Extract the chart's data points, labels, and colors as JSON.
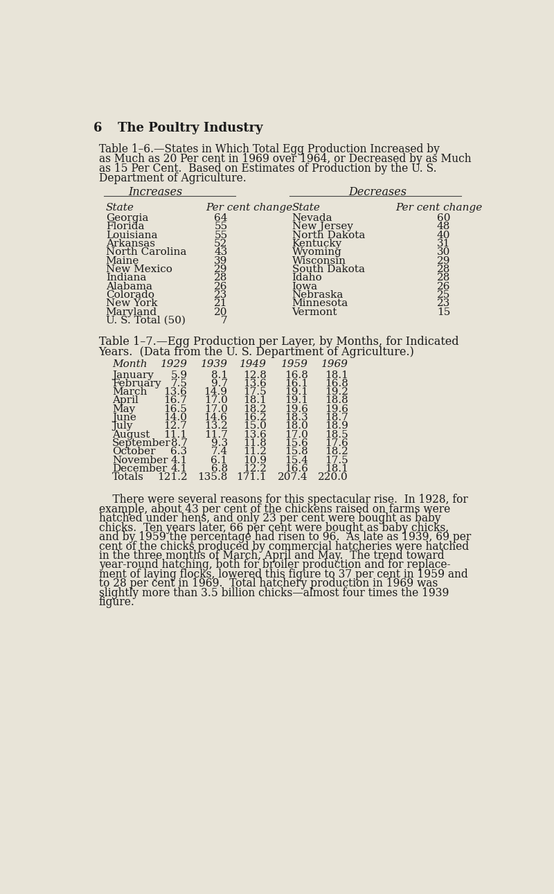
{
  "background_color": "#e8e4d8",
  "increases_header": "Increases",
  "decreases_header": "Decreases",
  "increases_data": [
    [
      "Georgia",
      "64"
    ],
    [
      "Florida",
      "55"
    ],
    [
      "Louisiana",
      "55"
    ],
    [
      "Arkansas",
      "52"
    ],
    [
      "North Carolina",
      "43"
    ],
    [
      "Maine",
      "39"
    ],
    [
      "New Mexico",
      "29"
    ],
    [
      "Indiana",
      "28"
    ],
    [
      "Alabama",
      "26"
    ],
    [
      "Colorado",
      "23"
    ],
    [
      "New York",
      "21"
    ],
    [
      "Maryland",
      "20"
    ],
    [
      "U. S. Total (50)",
      "7"
    ]
  ],
  "decreases_data": [
    [
      "Nevada",
      "60"
    ],
    [
      "New Jersey",
      "48"
    ],
    [
      "North Dakota",
      "40"
    ],
    [
      "Kentucky",
      "31"
    ],
    [
      "Wyoming",
      "30"
    ],
    [
      "Wisconsin",
      "29"
    ],
    [
      "South Dakota",
      "28"
    ],
    [
      "Idaho",
      "28"
    ],
    [
      "Iowa",
      "26"
    ],
    [
      "Nebraska",
      "25"
    ],
    [
      "Minnesota",
      "23"
    ],
    [
      "Vermont",
      "15"
    ]
  ],
  "table2_col_headers": [
    "Month",
    "1929",
    "1939",
    "1949",
    "1959",
    "1969"
  ],
  "table2_data": [
    [
      "January",
      "5.9",
      "8.1",
      "12.8",
      "16.8",
      "18.1"
    ],
    [
      "February",
      "7.5",
      "9.7",
      "13.6",
      "16.1",
      "16.8"
    ],
    [
      "March",
      "13.6",
      "14.9",
      "17.5",
      "19.1",
      "19.2"
    ],
    [
      "April",
      "16.7",
      "17.0",
      "18.1",
      "19.1",
      "18.8"
    ],
    [
      "May",
      "16.5",
      "17.0",
      "18.2",
      "19.6",
      "19.6"
    ],
    [
      "June",
      "14.0",
      "14.6",
      "16.2",
      "18.3",
      "18.7"
    ],
    [
      "July",
      "12.7",
      "13.2",
      "15.0",
      "18.0",
      "18.9"
    ],
    [
      "August",
      "11.1",
      "11.7",
      "13.6",
      "17.0",
      "18.5"
    ],
    [
      "September",
      "8.7",
      "9.3",
      "11.8",
      "15.6",
      "17.6"
    ],
    [
      "October",
      "6.3",
      "7.4",
      "11.2",
      "15.8",
      "18.2"
    ],
    [
      "November",
      "4.1",
      "6.1",
      "10.9",
      "15.4",
      "17.5"
    ],
    [
      "December",
      "4.1",
      "6.8",
      "12.2",
      "16.6",
      "18.1"
    ],
    [
      "Totals",
      "121.2",
      "135.8",
      "171.1",
      "207.4",
      "220.0"
    ]
  ],
  "header_num": "6",
  "header_title": "The Poultry Industry",
  "title1_lines": [
    "Table 1–6.—States in Which Total Egg Production Increased by",
    "as Much as 20 Per cent in 1969 over 1964, or Decreased by as Much",
    "as 15 Per Cent.  Based on Estimates of Production by the U. S.",
    "Department of Agriculture."
  ],
  "title2_lines": [
    "Table 1–7.—Egg Production per Layer, by Months, for Indicated",
    "Years.  (Data from the U. S. Department of Agriculture.)"
  ],
  "body_lines": [
    "    There were several reasons for this spectacular rise.  In 1928, for",
    "example, about 43 per cent of the chickens raised on farms were",
    "hatched under hens, and only 23 per cent were bought as baby",
    "chicks.  Ten years later, 66 per cent were bought as baby chicks,",
    "and by 1959 the percentage had risen to 96.  As late as 1939, 69 per",
    "cent of the chicks produced by commercial hatcheries were hatched",
    "in the three months of March, April and May.  The trend toward",
    "year-round hatching, both for broiler production and for replace-",
    "ment of laying flocks, lowered this figure to 37 per cent in 1959 and",
    "to 28 per cent in 1969.  Total hatchery production in 1969 was",
    "slightly more than 3.5 billion chicks—almost four times the 1939",
    "figure."
  ],
  "text_color": "#1a1a1a",
  "line_color": "#444444"
}
